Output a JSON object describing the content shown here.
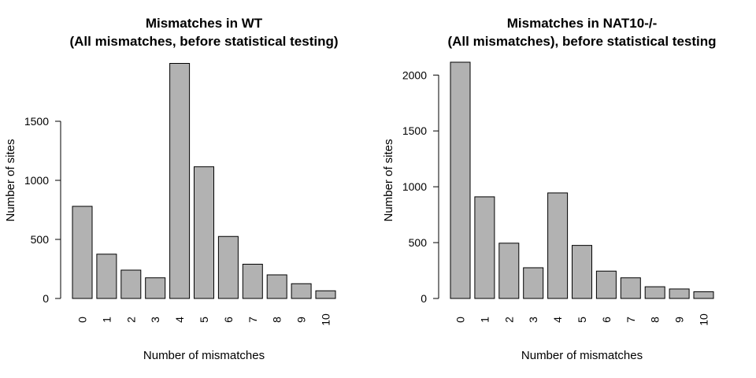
{
  "chart_data": [
    {
      "type": "bar",
      "title_line1": "Mismatches in WT",
      "title_line2": "(All mismatches, before statistical testing)",
      "xlabel": "Number of mismatches",
      "ylabel": "Number of sites",
      "categories": [
        "0",
        "1",
        "2",
        "3",
        "4",
        "5",
        "6",
        "7",
        "8",
        "9",
        "10"
      ],
      "values": [
        780,
        375,
        240,
        175,
        1990,
        1115,
        525,
        290,
        200,
        125,
        65
      ],
      "yticks": [
        0,
        500,
        1000,
        1500
      ],
      "ylim": [
        0,
        2000
      ],
      "grid": false,
      "bar_color": "#b2b2b2"
    },
    {
      "type": "bar",
      "title_line1": "Mismatches in NAT10-/-",
      "title_line2": "(All mismatches), before statistical testing",
      "xlabel": "Number of mismatches",
      "ylabel": "Number of sites",
      "categories": [
        "0",
        "1",
        "2",
        "3",
        "4",
        "5",
        "6",
        "7",
        "8",
        "9",
        "10"
      ],
      "values": [
        2115,
        910,
        495,
        275,
        945,
        475,
        245,
        185,
        105,
        85,
        60
      ],
      "yticks": [
        0,
        500,
        1000,
        1500,
        2000
      ],
      "ylim": [
        0,
        2115
      ],
      "grid": false,
      "bar_color": "#b2b2b2"
    }
  ]
}
